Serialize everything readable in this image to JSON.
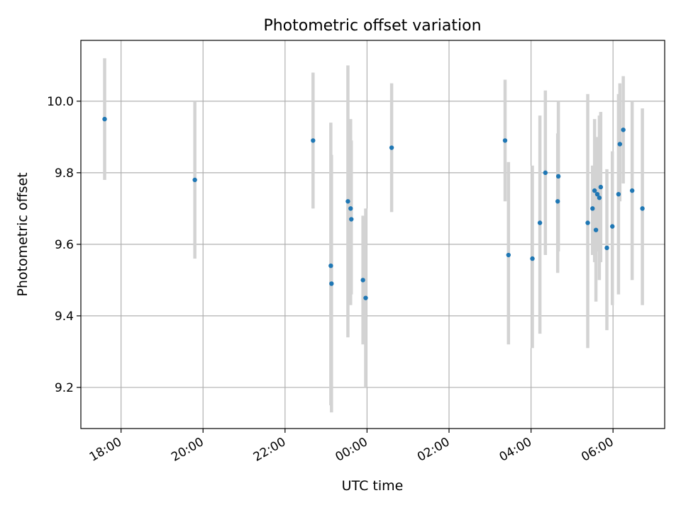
{
  "chart_data": {
    "type": "scatter",
    "title": "Photometric offset variation",
    "xlabel": "UTC time",
    "ylabel": "Photometric offset",
    "x_tick_labels": [
      "18:00",
      "20:00",
      "22:00",
      "00:00",
      "02:00",
      "04:00",
      "06:00"
    ],
    "y_tick_labels": [
      "9.2",
      "9.4",
      "9.6",
      "9.8",
      "10.0"
    ],
    "grid": true,
    "colors": {
      "points": "#1f77b4",
      "error_bars": "#d3d3d3",
      "grid": "#b0b0b0"
    },
    "series": [
      {
        "points": [
          {
            "x": "17:36",
            "y": 9.95,
            "ylo": 9.78,
            "yhi": 10.12
          },
          {
            "x": "19:48",
            "y": 9.78,
            "ylo": 9.56,
            "yhi": 10.0
          },
          {
            "x": "22:41",
            "y": 9.89,
            "ylo": 9.7,
            "yhi": 10.08
          },
          {
            "x": "23:07",
            "y": 9.54,
            "ylo": 9.15,
            "yhi": 9.94
          },
          {
            "x": "23:08",
            "y": 9.49,
            "ylo": 9.13,
            "yhi": 9.85
          },
          {
            "x": "23:32",
            "y": 9.72,
            "ylo": 9.34,
            "yhi": 10.1
          },
          {
            "x": "23:36",
            "y": 9.7,
            "ylo": 9.43,
            "yhi": 9.95
          },
          {
            "x": "23:37",
            "y": 9.67,
            "ylo": 9.46,
            "yhi": 9.89
          },
          {
            "x": "23:54",
            "y": 9.5,
            "ylo": 9.32,
            "yhi": 9.68
          },
          {
            "x": "23:58",
            "y": 9.45,
            "ylo": 9.2,
            "yhi": 9.7
          },
          {
            "x": "00:36",
            "y": 9.87,
            "ylo": 9.69,
            "yhi": 10.05
          },
          {
            "x": "03:22",
            "y": 9.89,
            "ylo": 9.72,
            "yhi": 10.06
          },
          {
            "x": "03:27",
            "y": 9.57,
            "ylo": 9.32,
            "yhi": 9.83
          },
          {
            "x": "04:02",
            "y": 9.56,
            "ylo": 9.31,
            "yhi": 9.82
          },
          {
            "x": "04:13",
            "y": 9.66,
            "ylo": 9.35,
            "yhi": 9.96
          },
          {
            "x": "04:21",
            "y": 9.8,
            "ylo": 9.57,
            "yhi": 10.03
          },
          {
            "x": "04:39",
            "y": 9.72,
            "ylo": 9.52,
            "yhi": 9.91
          },
          {
            "x": "04:40",
            "y": 9.79,
            "ylo": 9.58,
            "yhi": 10.0
          },
          {
            "x": "05:23",
            "y": 9.66,
            "ylo": 9.31,
            "yhi": 10.02
          },
          {
            "x": "05:30",
            "y": 9.7,
            "ylo": 9.57,
            "yhi": 9.82
          },
          {
            "x": "05:33",
            "y": 9.75,
            "ylo": 9.55,
            "yhi": 9.95
          },
          {
            "x": "05:35",
            "y": 9.64,
            "ylo": 9.44,
            "yhi": 9.84
          },
          {
            "x": "05:37",
            "y": 9.74,
            "ylo": 9.58,
            "yhi": 9.9
          },
          {
            "x": "05:40",
            "y": 9.73,
            "ylo": 9.5,
            "yhi": 9.96
          },
          {
            "x": "05:42",
            "y": 9.76,
            "ylo": 9.55,
            "yhi": 9.97
          },
          {
            "x": "05:51",
            "y": 9.59,
            "ylo": 9.36,
            "yhi": 9.81
          },
          {
            "x": "05:59",
            "y": 9.65,
            "ylo": 9.43,
            "yhi": 9.86
          },
          {
            "x": "06:08",
            "y": 9.74,
            "ylo": 9.46,
            "yhi": 10.02
          },
          {
            "x": "06:10",
            "y": 9.88,
            "ylo": 9.72,
            "yhi": 10.05
          },
          {
            "x": "06:15",
            "y": 9.92,
            "ylo": 9.77,
            "yhi": 10.07
          },
          {
            "x": "06:28",
            "y": 9.75,
            "ylo": 9.5,
            "yhi": 10.0
          },
          {
            "x": "06:43",
            "y": 9.7,
            "ylo": 9.43,
            "yhi": 9.98
          }
        ]
      }
    ]
  }
}
